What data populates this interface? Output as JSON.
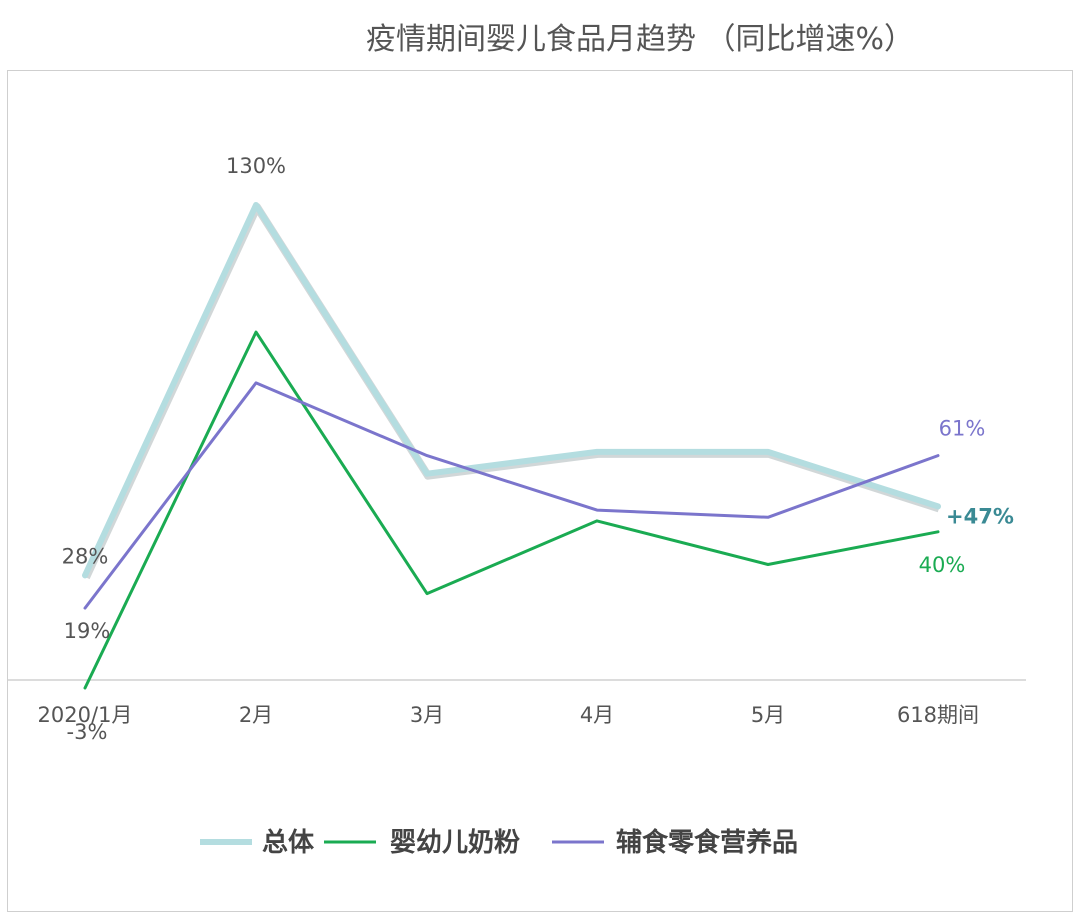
{
  "chart_data": {
    "type": "line",
    "title": "疫情期间婴儿食品月趋势 （同比增速%）",
    "categories": [
      "2020/1月",
      "2月",
      "3月",
      "4月",
      "5月",
      "618期间"
    ],
    "ylim": [
      -3,
      130
    ],
    "grid": false,
    "legend": "bottom-center",
    "series": [
      {
        "name": "总体",
        "color": "#b4dde0",
        "values": [
          28,
          130,
          56,
          62,
          62,
          47
        ]
      },
      {
        "name": "婴幼儿奶粉",
        "color": "#1aab52",
        "values": [
          -3,
          95,
          23,
          43,
          31,
          40
        ]
      },
      {
        "name": "辅食零食营养品",
        "color": "#7b75cc",
        "values": [
          19,
          81,
          61,
          46,
          44,
          61
        ]
      }
    ],
    "data_labels": [
      {
        "series": 0,
        "index": 0,
        "text": "28%"
      },
      {
        "series": 0,
        "index": 1,
        "text": "130%"
      },
      {
        "series": 0,
        "index": 5,
        "text": "+47%"
      },
      {
        "series": 1,
        "index": 0,
        "text": "-3%"
      },
      {
        "series": 1,
        "index": 5,
        "text": "40%"
      },
      {
        "series": 2,
        "index": 0,
        "text": "19%"
      },
      {
        "series": 2,
        "index": 5,
        "text": "61%"
      }
    ]
  }
}
